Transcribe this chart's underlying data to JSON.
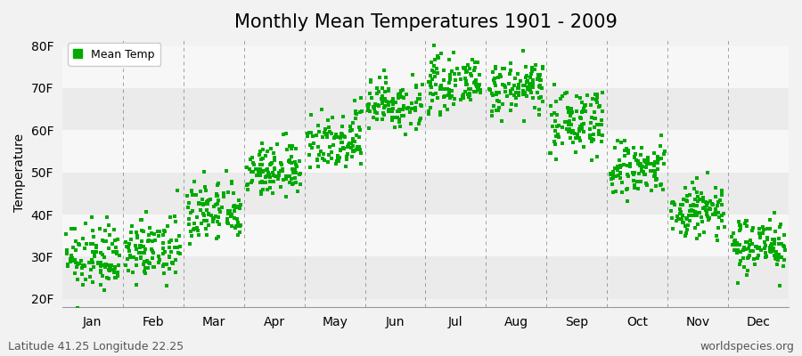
{
  "title": "Monthly Mean Temperatures 1901 - 2009",
  "ylabel": "Temperature",
  "y_ticks": [
    20,
    30,
    40,
    50,
    60,
    70,
    80
  ],
  "y_tick_labels": [
    "20F",
    "30F",
    "40F",
    "50F",
    "60F",
    "70F",
    "80F"
  ],
  "ylim": [
    18,
    82
  ],
  "months": [
    "Jan",
    "Feb",
    "Mar",
    "Apr",
    "May",
    "Jun",
    "Jul",
    "Aug",
    "Sep",
    "Oct",
    "Nov",
    "Dec"
  ],
  "monthly_means": [
    29.5,
    31.5,
    40.5,
    50.5,
    58.0,
    66.5,
    71.0,
    70.0,
    62.0,
    50.5,
    41.0,
    33.0
  ],
  "monthly_stds": [
    3.8,
    3.5,
    3.8,
    3.2,
    3.8,
    3.2,
    2.8,
    3.0,
    3.8,
    3.5,
    3.5,
    3.2
  ],
  "n_years": 109,
  "marker_color": "#00aa00",
  "marker_size": 2.5,
  "bg_color": "#f2f2f2",
  "band_colors": [
    "#ebebeb",
    "#f7f7f7"
  ],
  "grid_color": "#666666",
  "legend_label": "Mean Temp",
  "footer_left": "Latitude 41.25 Longitude 22.25",
  "footer_right": "worldspecies.org",
  "title_fontsize": 15,
  "axis_fontsize": 10,
  "footer_fontsize": 9,
  "legend_fontsize": 9
}
